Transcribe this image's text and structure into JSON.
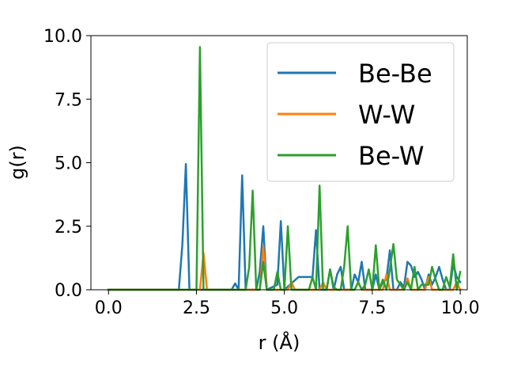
{
  "chart_data": {
    "type": "line",
    "xlabel": "r (Å)",
    "ylabel": "g(r)",
    "xlim": [
      -0.5,
      10.2
    ],
    "ylim": [
      0,
      10
    ],
    "xticks": [
      "0.0",
      "2.5",
      "5.0",
      "7.5",
      "10.0"
    ],
    "yticks": [
      "0.0",
      "2.5",
      "5.0",
      "7.5",
      "10.0"
    ],
    "grid": false,
    "legend_position": "top-right",
    "series": [
      {
        "name": "Be-Be",
        "color": "#1f77b4",
        "x": [
          0.0,
          2.0,
          2.1,
          2.2,
          2.3,
          3.5,
          3.6,
          3.7,
          3.8,
          3.9,
          4.2,
          4.3,
          4.4,
          4.5,
          4.8,
          4.9,
          5.0,
          5.4,
          5.5,
          5.8,
          5.9,
          6.0,
          6.1,
          6.2,
          6.3,
          6.4,
          6.5,
          6.6,
          6.7,
          6.8,
          6.9,
          7.0,
          7.1,
          7.2,
          7.3,
          7.4,
          7.5,
          7.6,
          7.7,
          7.8,
          7.9,
          8.0,
          8.1,
          8.2,
          8.3,
          8.4,
          8.5,
          8.6,
          8.7,
          8.8,
          8.9,
          9.0,
          9.1,
          9.2,
          9.3,
          9.4,
          9.5,
          9.6,
          9.7,
          9.8,
          9.9,
          10.0
        ],
        "y": [
          0.0,
          0.0,
          1.8,
          4.95,
          0.0,
          0.0,
          0.25,
          0.0,
          4.5,
          0.0,
          0.0,
          0.7,
          2.5,
          0.0,
          0.2,
          2.7,
          0.0,
          0.5,
          0.5,
          0.5,
          2.35,
          0.0,
          0.0,
          0.0,
          0.8,
          0.0,
          0.6,
          0.9,
          0.0,
          0.0,
          0.0,
          0.6,
          0.3,
          1.1,
          0.0,
          0.0,
          0.0,
          0.6,
          0.0,
          0.3,
          0.4,
          1.55,
          0.0,
          0.0,
          0.3,
          0.1,
          1.1,
          0.95,
          0.5,
          0.7,
          0.4,
          0.0,
          0.6,
          0.2,
          0.5,
          0.9,
          0.4,
          0.0,
          0.0,
          1.0,
          0.5,
          0.3
        ]
      },
      {
        "name": "W-W",
        "color": "#ff7f0e",
        "x": [
          0.0,
          2.6,
          2.7,
          2.8,
          4.3,
          4.4,
          4.5,
          5.1,
          5.2,
          5.3,
          6.0,
          6.1,
          6.2,
          7.0,
          7.1,
          7.2,
          7.8,
          7.9,
          8.0,
          8.4,
          8.5,
          8.6,
          9.0,
          9.1,
          9.2,
          9.8,
          9.9,
          10.0
        ],
        "y": [
          0.0,
          0.0,
          1.45,
          0.0,
          0.0,
          1.7,
          0.0,
          0.0,
          0.3,
          0.0,
          0.0,
          0.3,
          0.0,
          0.0,
          0.3,
          0.0,
          0.0,
          0.6,
          0.0,
          0.0,
          0.45,
          0.0,
          0.0,
          0.5,
          0.0,
          0.0,
          0.3,
          0.0
        ]
      },
      {
        "name": "Be-W",
        "color": "#2ca02c",
        "x": [
          0.0,
          2.5,
          2.6,
          2.7,
          3.9,
          4.0,
          4.1,
          4.2,
          4.3,
          4.4,
          4.5,
          4.6,
          4.7,
          4.8,
          4.9,
          5.0,
          5.1,
          5.2,
          5.3,
          5.4,
          5.5,
          5.6,
          5.7,
          5.8,
          5.9,
          6.0,
          6.1,
          6.2,
          6.3,
          6.4,
          6.5,
          6.6,
          6.7,
          6.8,
          6.9,
          7.0,
          7.1,
          7.2,
          7.3,
          7.4,
          7.5,
          7.6,
          7.7,
          7.8,
          7.9,
          8.0,
          8.1,
          8.2,
          8.3,
          8.4,
          8.5,
          8.6,
          8.7,
          8.8,
          8.9,
          9.0,
          9.1,
          9.2,
          9.3,
          9.4,
          9.5,
          9.6,
          9.7,
          9.8,
          9.9,
          10.0
        ],
        "y": [
          0.0,
          0.0,
          9.55,
          0.0,
          0.0,
          0.9,
          3.9,
          0.0,
          0.0,
          1.1,
          0.0,
          0.0,
          0.0,
          0.7,
          0.0,
          0.0,
          2.5,
          0.0,
          0.0,
          0.0,
          0.0,
          0.0,
          0.0,
          0.5,
          0.0,
          4.1,
          0.0,
          0.0,
          0.8,
          0.1,
          0.0,
          0.0,
          0.9,
          2.5,
          0.0,
          0.0,
          0.3,
          0.0,
          0.2,
          0.8,
          0.0,
          1.75,
          0.0,
          0.4,
          0.0,
          0.8,
          1.8,
          0.4,
          0.2,
          0.0,
          0.3,
          0.0,
          0.9,
          0.0,
          0.2,
          0.2,
          0.2,
          0.9,
          0.4,
          0.0,
          0.0,
          0.5,
          0.1,
          1.4,
          0.0,
          0.7
        ]
      }
    ]
  }
}
